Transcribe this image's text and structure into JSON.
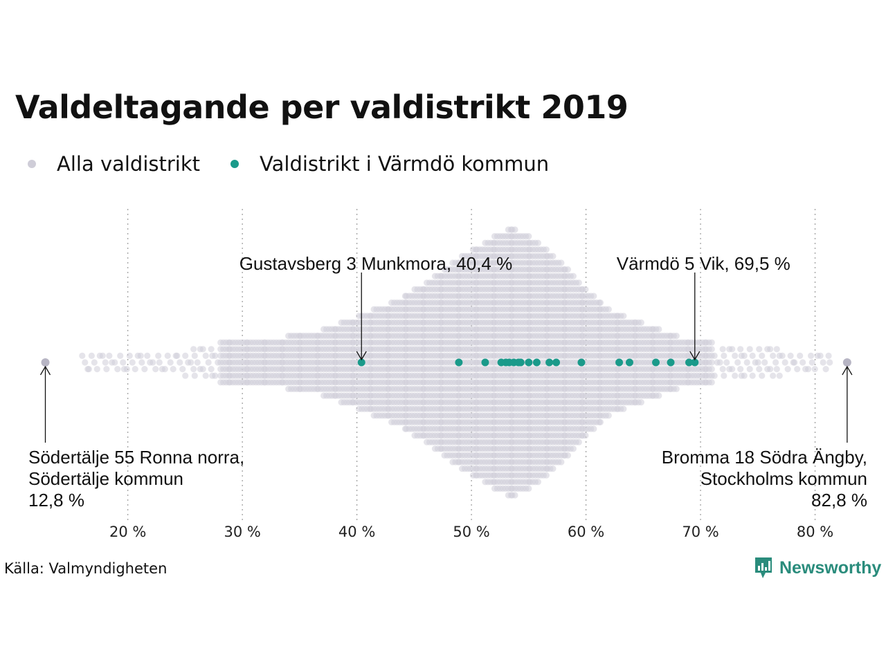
{
  "page": {
    "title": "Valdeltagande per valdistrikt 2019",
    "source": "Källa: Valmyndigheten",
    "brand": "Newsworthy"
  },
  "colors": {
    "all": "#cfcdd8",
    "highlight": "#1a9a8a",
    "brand": "#2a8c7c",
    "grid": "#9a9a9a"
  },
  "chart_data": {
    "type": "scatter",
    "subtype": "beeswarm",
    "title": "Valdeltagande per valdistrikt 2019",
    "xlabel": "",
    "ylabel": "",
    "xlim": [
      11.5,
      84.5
    ],
    "x_ticks": [
      20,
      30,
      40,
      50,
      60,
      70,
      80
    ],
    "x_tick_labels": [
      "20 %",
      "30 %",
      "40 %",
      "50 %",
      "60 %",
      "70 %",
      "80 %"
    ],
    "grid": "vertical dotted",
    "legend_position": "top-left",
    "series": [
      {
        "name": "Alla valdistrikt",
        "color": "#cfcdd8",
        "distribution": {
          "min": 12.8,
          "max": 82.8,
          "peak": 53.8,
          "extent_at": [
            [
              16,
              1
            ],
            [
              19,
              1
            ],
            [
              22,
              1
            ],
            [
              25,
              2
            ],
            [
              28,
              3
            ],
            [
              31,
              3
            ],
            [
              34,
              4
            ],
            [
              37,
              5
            ],
            [
              40,
              7
            ],
            [
              43,
              9
            ],
            [
              46,
              12
            ],
            [
              49,
              16
            ],
            [
              51,
              18
            ],
            [
              53,
              20
            ],
            [
              54,
              20
            ],
            [
              56,
              18
            ],
            [
              58,
              15
            ],
            [
              60,
              11
            ],
            [
              62,
              8
            ],
            [
              65,
              6
            ],
            [
              68,
              4
            ],
            [
              71,
              3
            ],
            [
              74,
              2
            ],
            [
              77,
              2
            ],
            [
              80,
              1
            ],
            [
              82,
              1
            ]
          ]
        },
        "highlighted": [
          {
            "label": "Södertälje 55 Ronna norra,",
            "label2": "Södertälje kommun",
            "value_text": "12,8 %",
            "x": 12.8
          },
          {
            "label": "Bromma 18 Södra Ängby,",
            "label2": "Stockholms kommun",
            "value_text": "82,8 %",
            "x": 82.8
          }
        ]
      },
      {
        "name": "Valdistrikt i Värmdö kommun",
        "color": "#1a9a8a",
        "x": [
          40.4,
          48.9,
          51.2,
          52.6,
          53.0,
          53.3,
          53.7,
          54.1,
          54.3,
          55.0,
          55.7,
          56.8,
          57.4,
          59.6,
          62.9,
          63.8,
          66.1,
          67.4,
          69.0,
          69.5
        ],
        "annotations": [
          {
            "label": "Gustavsberg 3 Munkmora, 40,4 %",
            "x": 40.4
          },
          {
            "label": "Värmdö 5 Vik, 69,5 %",
            "x": 69.5
          }
        ]
      }
    ]
  }
}
